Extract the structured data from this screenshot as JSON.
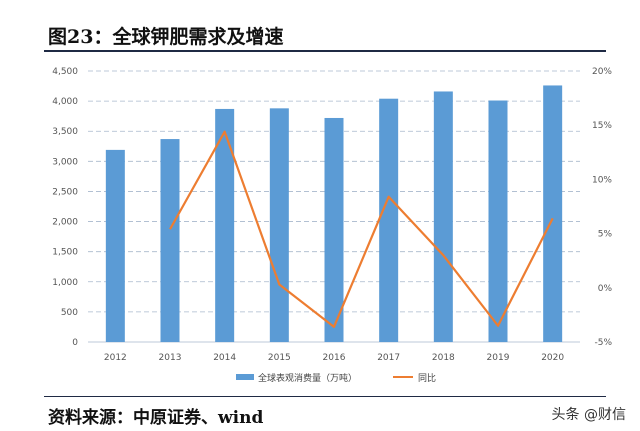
{
  "title": "图23：全球钾肥需求及增速",
  "source": "资料来源：中原证券、wind",
  "watermark": "头条 @财信",
  "colors": {
    "bar": "#5b9bd5",
    "line": "#ed7d31",
    "grid": "#a8b8cc",
    "rule": "#1f2a44"
  },
  "chart_data": {
    "type": "bar",
    "categories": [
      "2012",
      "2013",
      "2014",
      "2015",
      "2016",
      "2017",
      "2018",
      "2019",
      "2020"
    ],
    "series": [
      {
        "name": "全球表观消费量（万吨）",
        "type": "bar",
        "axis": "left",
        "values": [
          3190,
          3370,
          3870,
          3880,
          3720,
          4040,
          4160,
          4010,
          4260
        ]
      },
      {
        "name": "同比",
        "type": "line",
        "axis": "right",
        "values": [
          null,
          5.4,
          14.4,
          0.3,
          -3.6,
          8.4,
          3.0,
          -3.5,
          6.4
        ]
      }
    ],
    "ylim": [
      0,
      4500
    ],
    "yticks": [
      "0",
      "500",
      "1,000",
      "1,500",
      "2,000",
      "2,500",
      "3,000",
      "3,500",
      "4,000",
      "4,500"
    ],
    "y2lim": [
      -5,
      20
    ],
    "y2ticks": [
      "-5%",
      "0%",
      "5%",
      "10%",
      "15%",
      "20%"
    ],
    "grid": true,
    "legend": "bottom"
  }
}
